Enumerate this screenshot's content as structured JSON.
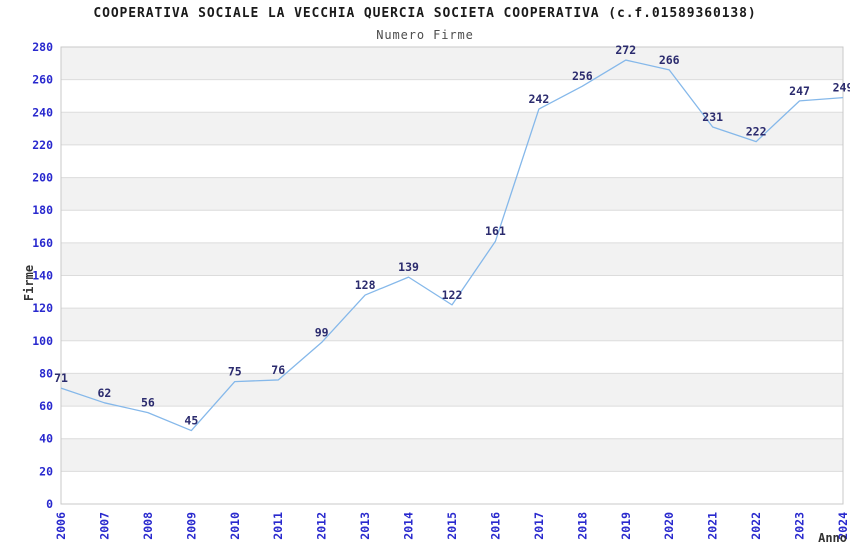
{
  "header": {
    "title": "COOPERATIVA SOCIALE LA VECCHIA QUERCIA SOCIETA COOPERATIVA (c.f.01589360138)",
    "subtitle": "Numero Firme"
  },
  "chart_data": {
    "type": "line",
    "title": "COOPERATIVA SOCIALE LA VECCHIA QUERCIA SOCIETA COOPERATIVA (c.f.01589360138)",
    "subtitle": "Numero Firme",
    "xlabel": "Anno",
    "ylabel": "Firme",
    "categories": [
      "2006",
      "2007",
      "2008",
      "2009",
      "2010",
      "2011",
      "2012",
      "2013",
      "2014",
      "2015",
      "2016",
      "2017",
      "2018",
      "2019",
      "2020",
      "2021",
      "2022",
      "2023",
      "2024"
    ],
    "values": [
      71,
      62,
      56,
      45,
      75,
      76,
      99,
      128,
      139,
      122,
      161,
      242,
      256,
      272,
      266,
      231,
      222,
      247,
      249
    ],
    "ylim": [
      0,
      280
    ],
    "ytick_step": 20,
    "grid": true,
    "legend_position": "none",
    "band_pattern": "alternating-horizontal",
    "colors": {
      "line": "#85b8ea",
      "data_label": "#2b2b6e",
      "axis_tick_label": "#2929ce",
      "band_fill": "#f2f2f2",
      "gridline": "#dcdcdc",
      "plot_border": "#c9c9c9",
      "title": "#1a1a1a",
      "subtitle": "#4d4d4d",
      "axis_title": "#333333",
      "background": "#ffffff"
    }
  }
}
